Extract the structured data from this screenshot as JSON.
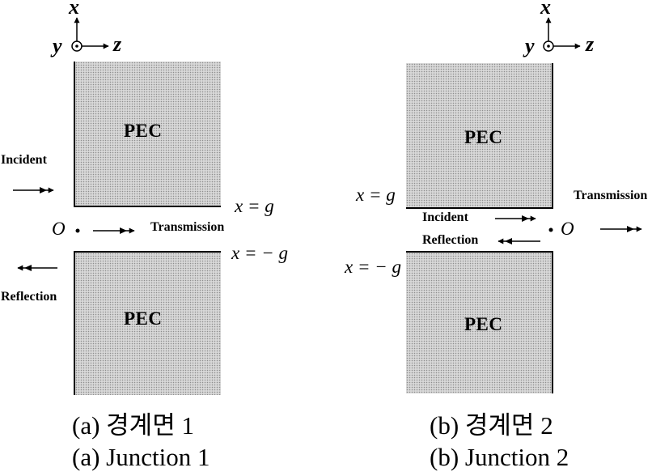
{
  "panel_a": {
    "axes": {
      "x": "x",
      "y": "y",
      "z": "z"
    },
    "pec_top_label": "PEC",
    "pec_bottom_label": "PEC",
    "incident_label": "Incident",
    "transmission_label": "Transmission",
    "reflection_label": "Reflection",
    "boundary_upper": "x = g",
    "boundary_lower": "x = − g",
    "origin_label": "O",
    "caption_korean": "(a)  경계면 1",
    "caption_english": "(a)  Junction 1"
  },
  "panel_b": {
    "axes": {
      "x": "x",
      "y": "y",
      "z": "z"
    },
    "pec_top_label": "PEC",
    "pec_bottom_label": "PEC",
    "incident_label": "Incident",
    "transmission_label": "Transmission",
    "reflection_label": "Reflection",
    "boundary_upper": "x = g",
    "boundary_lower": "x = − g",
    "origin_label": "O",
    "caption_korean": "(b)  경계면 2",
    "caption_english": "(b)  Junction 2"
  }
}
